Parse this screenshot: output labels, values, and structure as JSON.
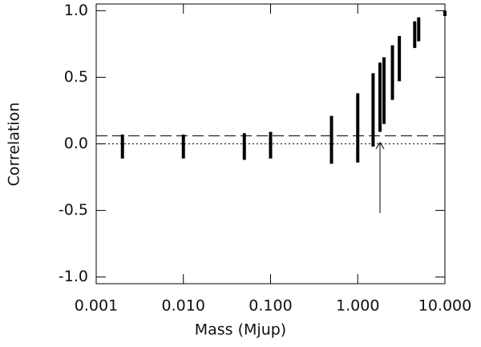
{
  "chart_data": {
    "type": "range",
    "x_label": "Mass (Mjup)",
    "y_label": "Correlation",
    "x_log": true,
    "xlim": [
      0.001,
      10
    ],
    "ylim": [
      -1.05,
      1.05
    ],
    "xticks": [
      {
        "value": 0.001,
        "label": "0.001"
      },
      {
        "value": 0.01,
        "label": "0.010"
      },
      {
        "value": 0.1,
        "label": "0.100"
      },
      {
        "value": 1,
        "label": "1.000"
      },
      {
        "value": 10,
        "label": "10.000"
      }
    ],
    "yticks": [
      {
        "value": 1,
        "label": "1.0"
      },
      {
        "value": 0.5,
        "label": "0.5"
      },
      {
        "value": 0,
        "label": "0.0"
      },
      {
        "value": -0.5,
        "label": "-0.5"
      },
      {
        "value": -1,
        "label": "-1.0"
      }
    ],
    "color": "#000000",
    "x": [
      0.002,
      0.01,
      0.05,
      0.1,
      0.5,
      1.0,
      1.5,
      1.8,
      2.0,
      2.5,
      3.0,
      4.5,
      5.0,
      10.0
    ],
    "low": [
      -0.11,
      -0.11,
      -0.12,
      -0.11,
      -0.15,
      -0.14,
      -0.02,
      0.09,
      0.15,
      0.33,
      0.47,
      0.72,
      0.77,
      0.96
    ],
    "high": [
      0.07,
      0.07,
      0.08,
      0.09,
      0.21,
      0.38,
      0.53,
      0.61,
      0.65,
      0.74,
      0.81,
      0.92,
      0.95,
      1.0
    ],
    "hlines": [
      {
        "y": 0.06,
        "style": "dashed"
      },
      {
        "y": 0,
        "style": "dotted"
      }
    ],
    "arrow": {
      "x": 1.8,
      "y_from": -0.52,
      "y_to": 0.01
    }
  }
}
